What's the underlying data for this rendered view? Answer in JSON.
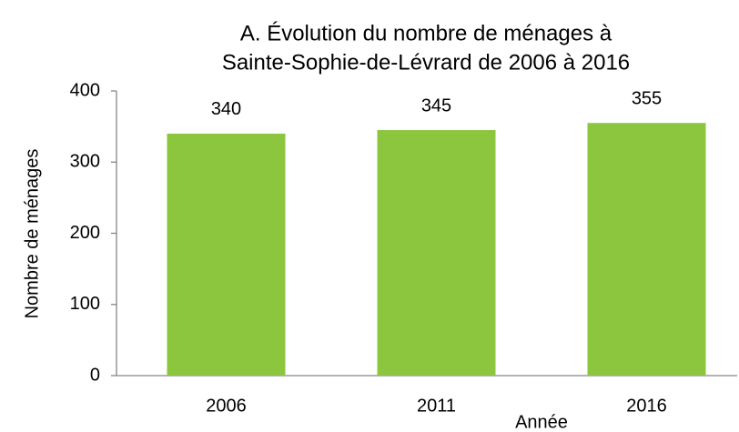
{
  "chart_data": {
    "type": "bar",
    "title": [
      "A. Évolution du nombre de ménages à",
      "Sainte-Sophie-de-Lévrard de 2006 à 2016"
    ],
    "x_label": "Année",
    "y_label": "Nombre de ménages",
    "categories": [
      "2006",
      "2011",
      "2016"
    ],
    "values": [
      340,
      345,
      355
    ],
    "color": "#8cc63e",
    "ylim": [
      0,
      400
    ],
    "yticks": [
      0,
      100,
      200,
      300,
      400
    ],
    "grid": false,
    "data_labels": true
  }
}
